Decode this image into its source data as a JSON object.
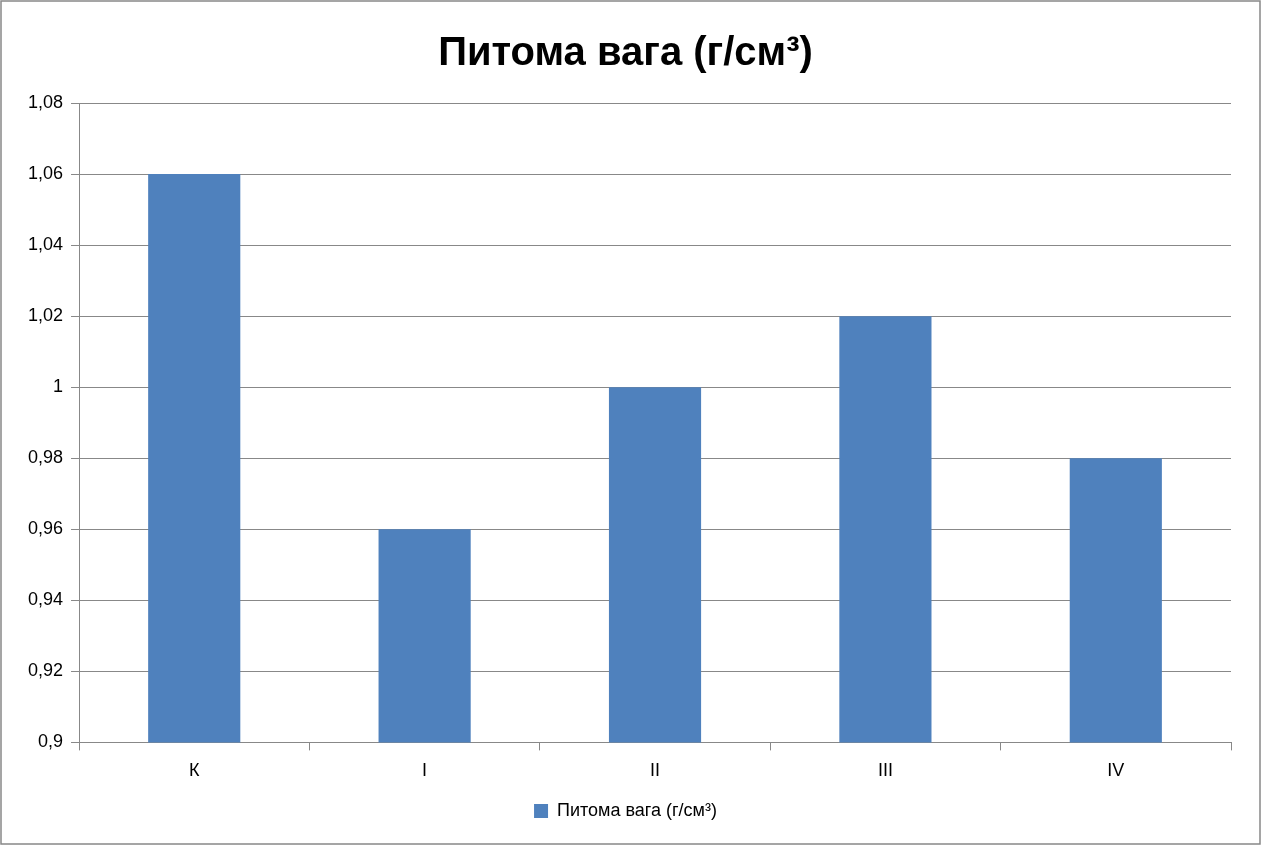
{
  "chart_data": {
    "type": "bar",
    "title": "Питома вага (г/см³)",
    "categories": [
      "К",
      "I",
      "II",
      "III",
      "IV"
    ],
    "series": [
      {
        "name": "Питома вага (г/см³)",
        "color": "#4f81bd",
        "values": [
          1.06,
          0.96,
          1.0,
          1.02,
          0.98
        ]
      }
    ],
    "ylim": [
      0.9,
      1.08
    ],
    "yticks": [
      {
        "value": 0.9,
        "label": "0,9"
      },
      {
        "value": 0.92,
        "label": "0,92"
      },
      {
        "value": 0.94,
        "label": "0,94"
      },
      {
        "value": 0.96,
        "label": "0,96"
      },
      {
        "value": 0.98,
        "label": "0,98"
      },
      1,
      {
        "value": 1.02,
        "label": "1,02"
      },
      {
        "value": 1.04,
        "label": "1,04"
      },
      {
        "value": 1.06,
        "label": "1,06"
      },
      {
        "value": 1.08,
        "label": "1,08"
      }
    ],
    "grid": "y",
    "legend": "bottom"
  }
}
